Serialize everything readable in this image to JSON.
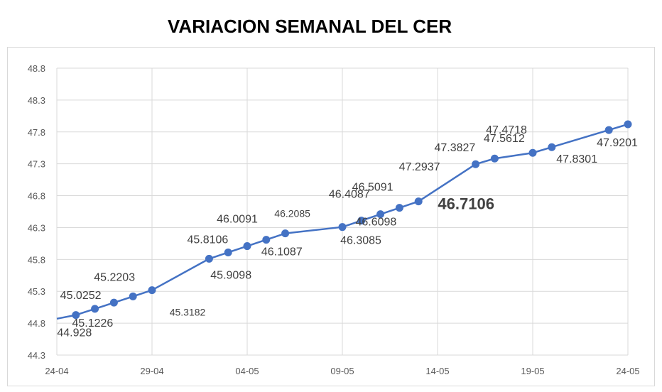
{
  "chart_data": {
    "type": "line",
    "title": "VARIACION SEMANAL DEL CER",
    "xlabel": "",
    "ylabel": "",
    "ylim": [
      44.3,
      48.8
    ],
    "yticks": [
      "44.3",
      "44.8",
      "45.3",
      "45.8",
      "46.3",
      "46.8",
      "47.3",
      "47.8",
      "48.3",
      "48.8"
    ],
    "xticks": [
      "24-04",
      "29-04",
      "04-05",
      "09-05",
      "14-05",
      "19-05",
      "24-05"
    ],
    "grid": true,
    "legend": "none",
    "color": "#4472c4",
    "series": [
      {
        "x": [
          "24-04",
          "25-04",
          "26-04",
          "27-04",
          "28-04",
          "29-04",
          "02-05",
          "03-05",
          "04-05",
          "05-05",
          "06-05",
          "09-05",
          "10-05",
          "11-05",
          "12-05",
          "13-05",
          "16-05",
          "17-05",
          "19-05",
          "20-05",
          "23-05",
          "24-05"
        ],
        "values": [
          44.87,
          44.928,
          45.0252,
          45.1226,
          45.2203,
          45.3182,
          45.8106,
          45.9098,
          46.0091,
          46.1087,
          46.2085,
          46.3085,
          46.4087,
          46.5091,
          46.6098,
          46.7106,
          47.2937,
          47.3827,
          47.4718,
          47.5612,
          47.8301,
          47.9201
        ],
        "labels": [
          "",
          "44.928",
          "45.0252",
          "45.1226",
          "45.2203",
          "45.3182",
          "45.8106",
          "45.9098",
          "46.0091",
          "46.1087",
          "46.2085",
          "46.3085",
          "46.4087",
          "46.5091",
          "46.6098",
          "46.7106",
          "47.2937",
          "47.3827",
          "47.4718",
          "47.5612",
          "47.8301",
          "47.9201"
        ]
      }
    ]
  }
}
